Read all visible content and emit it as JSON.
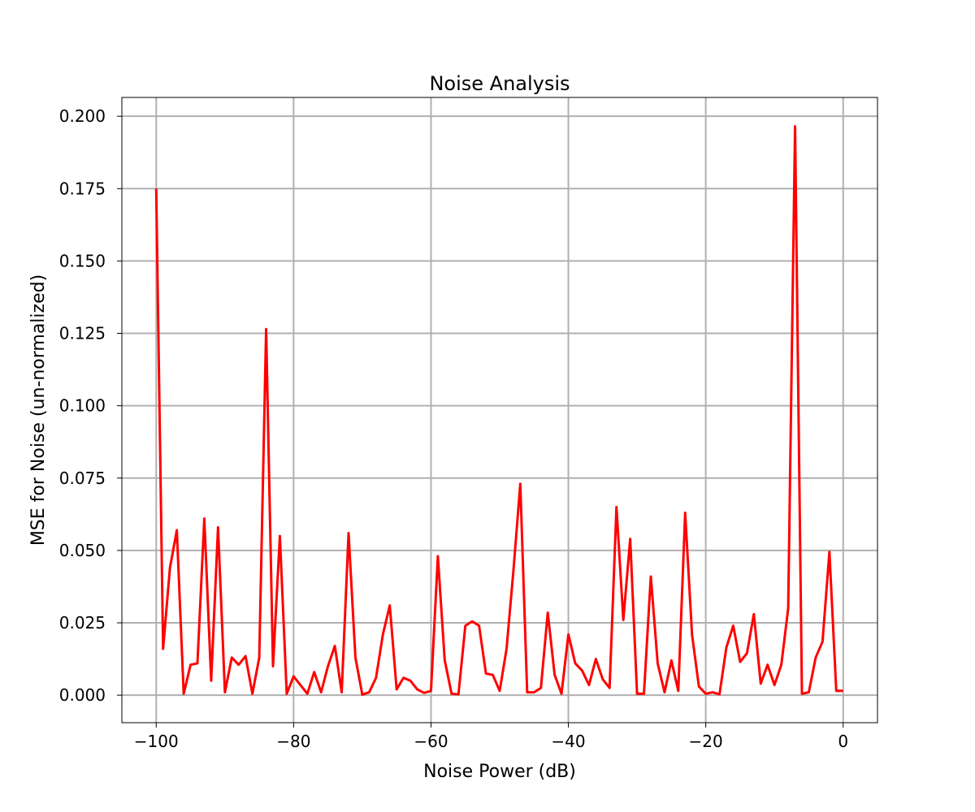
{
  "chart_data": {
    "type": "line",
    "title": "Noise Analysis",
    "xlabel": "Noise Power (dB)",
    "ylabel": "MSE for Noise (un-normalized)",
    "xlim": [
      -105,
      5
    ],
    "ylim": [
      -0.0095,
      0.2065
    ],
    "xticks": [
      -100,
      -80,
      -60,
      -40,
      -20,
      0
    ],
    "xtick_labels": [
      "−100",
      "−80",
      "−60",
      "−40",
      "−20",
      "0"
    ],
    "yticks": [
      0.0,
      0.025,
      0.05,
      0.075,
      0.1,
      0.125,
      0.15,
      0.175,
      0.2
    ],
    "ytick_labels": [
      "0.000",
      "0.025",
      "0.050",
      "0.075",
      "0.100",
      "0.125",
      "0.150",
      "0.175",
      "0.200"
    ],
    "grid": true,
    "series": [
      {
        "color": "#ff0000",
        "x": [
          -100,
          -99,
          -98,
          -97,
          -96,
          -95,
          -94,
          -93,
          -92,
          -91,
          -90,
          -89,
          -88,
          -87,
          -86,
          -85,
          -84,
          -83,
          -82,
          -81,
          -80,
          -79,
          -78,
          -77,
          -76,
          -75,
          -74,
          -73,
          -72,
          -71,
          -70,
          -69,
          -68,
          -67,
          -66,
          -65,
          -64,
          -63,
          -62,
          -61,
          -60,
          -59,
          -58,
          -57,
          -56,
          -55,
          -54,
          -53,
          -52,
          -51,
          -50,
          -49,
          -48,
          -47,
          -46,
          -45,
          -44,
          -43,
          -42,
          -41,
          -40,
          -39,
          -38,
          -37,
          -36,
          -35,
          -34,
          -33,
          -32,
          -31,
          -30,
          -29,
          -28,
          -27,
          -26,
          -25,
          -24,
          -23,
          -22,
          -21,
          -20,
          -19,
          -18,
          -17,
          -16,
          -15,
          -14,
          -13,
          -12,
          -11,
          -10,
          -9,
          -8,
          -7,
          -6,
          -5,
          -4,
          -3,
          -2,
          -1,
          0
        ],
        "y": [
          0.175,
          0.016,
          0.044,
          0.057,
          0.0005,
          0.0105,
          0.011,
          0.061,
          0.005,
          0.058,
          0.001,
          0.013,
          0.0105,
          0.0135,
          0.0005,
          0.013,
          0.1265,
          0.01,
          0.055,
          0.0005,
          0.0065,
          0.0035,
          0.0005,
          0.008,
          0.001,
          0.01,
          0.017,
          0.001,
          0.056,
          0.013,
          0.0002,
          0.001,
          0.006,
          0.021,
          0.031,
          0.002,
          0.006,
          0.005,
          0.002,
          0.0008,
          0.0015,
          0.048,
          0.012,
          0.0005,
          0.0003,
          0.024,
          0.0255,
          0.024,
          0.0075,
          0.007,
          0.0015,
          0.016,
          0.043,
          0.073,
          0.001,
          0.001,
          0.0025,
          0.0285,
          0.007,
          0.0005,
          0.021,
          0.011,
          0.0085,
          0.0035,
          0.0125,
          0.0055,
          0.0025,
          0.065,
          0.026,
          0.054,
          0.0005,
          0.0005,
          0.041,
          0.011,
          0.001,
          0.012,
          0.0015,
          0.063,
          0.021,
          0.003,
          0.0005,
          0.001,
          0.0003,
          0.0165,
          0.024,
          0.0115,
          0.0145,
          0.028,
          0.004,
          0.0105,
          0.0035,
          0.0105,
          0.03,
          0.1965,
          0.0005,
          0.001,
          0.013,
          0.0185,
          0.0495,
          0.0015,
          0.0015
        ]
      }
    ]
  }
}
